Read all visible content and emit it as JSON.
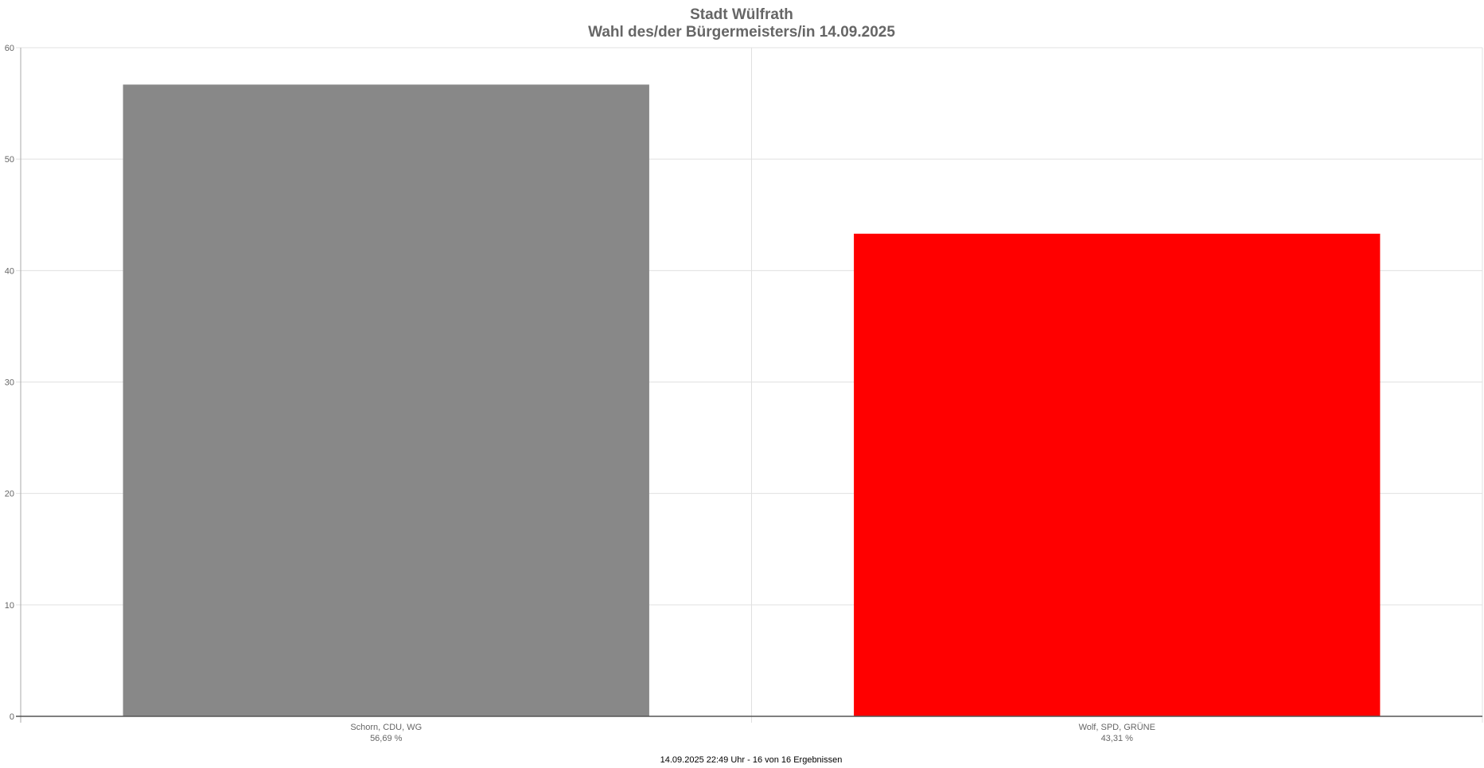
{
  "chart_data": {
    "type": "bar",
    "title": "Stadt Wülfrath",
    "subtitle": "Wahl des/der Bürgermeisters/in 14.09.2025",
    "categories": [
      "Schorn, CDU, WG",
      "Wolf, SPD, GRÜNE"
    ],
    "value_labels": [
      "56,69 %",
      "43,31 %"
    ],
    "values": [
      56.69,
      43.31
    ],
    "colors": [
      "#888888",
      "#ff0000"
    ],
    "ylim": [
      0,
      60
    ],
    "yticks": [
      "0",
      "10",
      "20",
      "30",
      "40",
      "50",
      "60"
    ],
    "grid": true,
    "xlabel": "",
    "ylabel": ""
  },
  "footer": "14.09.2025 22:49 Uhr - 16 von 16 Ergebnissen"
}
